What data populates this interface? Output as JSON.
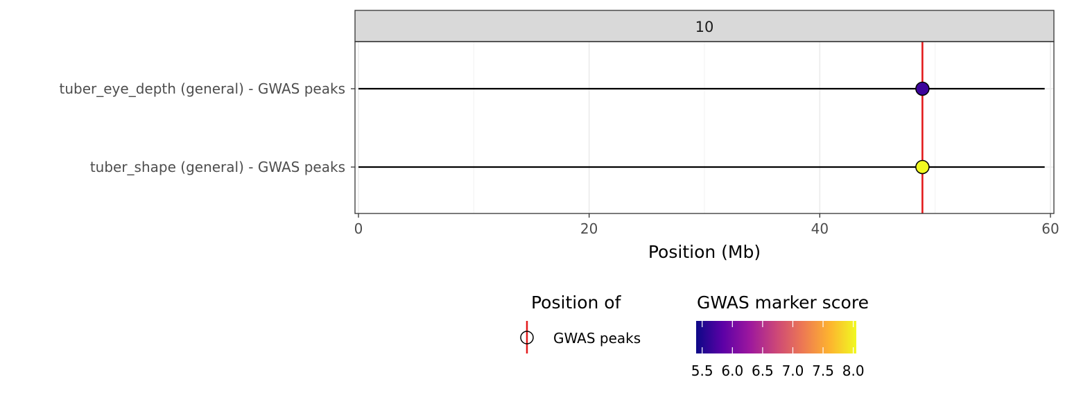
{
  "chart_data": {
    "type": "scatter",
    "facet_label": "10",
    "xlabel": "Position (Mb)",
    "xlim": [
      -0.3,
      60.3
    ],
    "xticks": [
      0,
      20,
      40,
      60
    ],
    "x_minor_gridlines": [
      10,
      30,
      50
    ],
    "rows": [
      {
        "label": "tuber_eye_depth (general) - GWAS peaks",
        "x_start": 0,
        "x_end": 59.5,
        "peak_position": 48.9,
        "score": 5.5,
        "color": "#3d049b"
      },
      {
        "label": "tuber_shape (general) - GWAS peaks",
        "x_start": 0,
        "x_end": 59.5,
        "peak_position": 48.9,
        "score": 8.0,
        "color": "#f0f921"
      }
    ],
    "vline": {
      "position": 48.9,
      "color": "#e31a1c"
    },
    "legend_position": {
      "title": "Position of",
      "label": "GWAS peaks",
      "line_color": "#e31a1c"
    },
    "legend_score": {
      "title": "GWAS marker score",
      "range": [
        5.4,
        8.05
      ],
      "ticks": [
        "5.5",
        "6.0",
        "6.5",
        "7.0",
        "7.5",
        "8.0"
      ],
      "tick_values": [
        5.5,
        6.0,
        6.5,
        7.0,
        7.5,
        8.0
      ],
      "colors": [
        "#0d0887",
        "#5c01a6",
        "#9c179e",
        "#cc4778",
        "#ed7953",
        "#fdb32f",
        "#f0f921"
      ]
    },
    "colors": {
      "strip_bg": "#d9d9d9",
      "border": "#333333",
      "grid_major": "#ebebeb",
      "grid_minor": "#f4f4f4",
      "segment": "#000000",
      "axis_text": "#4d4d4d"
    }
  }
}
